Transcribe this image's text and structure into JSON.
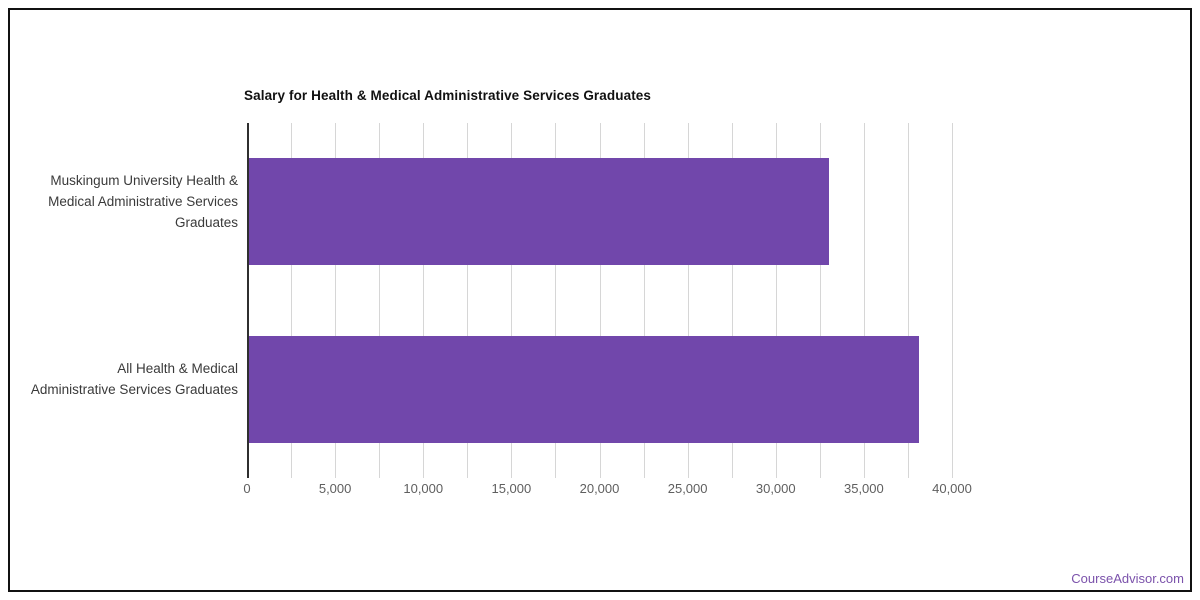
{
  "page": {
    "background": "#ffffff",
    "frame_border_color": "#111111"
  },
  "footer": {
    "brand": "CourseAdvisor.com",
    "color": "#7b52ab"
  },
  "chart_data": {
    "type": "bar",
    "orientation": "horizontal",
    "title": "Salary for Health & Medical Administrative Services Graduates",
    "categories": [
      "Muskingum University Health & Medical Administrative Services Graduates",
      "All Health & Medical Administrative Services Graduates"
    ],
    "category_label_lines": [
      [
        "Muskingum University Health &",
        "Medical Administrative Services",
        "Graduates"
      ],
      [
        "All Health & Medical",
        "Administrative Services Graduates"
      ]
    ],
    "values": [
      33000,
      38100
    ],
    "xlabel": "",
    "ylabel": "",
    "xlim": [
      0,
      40000
    ],
    "x_tick_values": [
      0,
      5000,
      10000,
      15000,
      20000,
      25000,
      30000,
      35000,
      40000
    ],
    "x_tick_labels": [
      "0",
      "5,000",
      "10,000",
      "15,000",
      "20,000",
      "25,000",
      "30,000",
      "35,000",
      "40,000"
    ],
    "gridline_interval": 2500,
    "grid": true,
    "legend": "none",
    "bar_color": "#7147ab",
    "axis_line_color": "#2f2f2f",
    "gridline_color": "#d6d6d6",
    "tick_label_color": "#5f5f5f",
    "category_label_color": "#3a3a3a",
    "title_color": "#111111"
  }
}
